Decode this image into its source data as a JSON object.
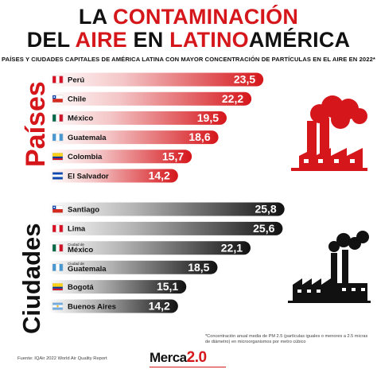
{
  "header": {
    "title_line1_black": "LA ",
    "title_line1_red": "CONTAMINACIÓN",
    "title_line2_black1": "DEL ",
    "title_line2_red1": "AIRE",
    "title_line2_black2": " EN ",
    "title_line2_red2": "LATINO",
    "title_line2_black3": "AMÉRICA",
    "subtitle": "PAÍSES Y CIUDADES CAPITALES DE AMÉRICA LATINA CON MAYOR CONCENTRACIÓN DE PARTÍCULAS EN EL AIRE EN 2022*"
  },
  "sections": {
    "countries_label": "Países",
    "cities_label": "Ciudades"
  },
  "colors": {
    "red": "#d5161b",
    "dark": "#111111",
    "country_bar_start": "#ffffff",
    "country_bar_end": "#d5161b",
    "city_bar_start": "#ffffff",
    "city_bar_end": "#111111"
  },
  "icons": {
    "countries": "factory-icon",
    "cities": "city-factory-icon"
  },
  "chart_data": [
    {
      "type": "bar",
      "orientation": "horizontal",
      "categories": [
        "Perú",
        "Chile",
        "México",
        "Guatemala",
        "Colombia",
        "El Salvador"
      ],
      "flags": [
        "peru-flag",
        "chile-flag",
        "mexico-flag",
        "guatemala-flag",
        "colombia-flag",
        "el-salvador-flag"
      ],
      "values": [
        23.5,
        22.2,
        19.5,
        18.6,
        15.7,
        14.2
      ],
      "value_labels": [
        "23,5",
        "22,2",
        "19,5",
        "18,6",
        "15,7",
        "14,2"
      ]
    },
    {
      "type": "bar",
      "orientation": "horizontal",
      "categories": [
        "Santiago",
        "Lima",
        "México",
        "Guatemala",
        "Bogotá",
        "Buenos Aires"
      ],
      "category_prefixes": [
        "",
        "",
        "Ciudad de",
        "Ciudad de",
        "",
        ""
      ],
      "flags": [
        "chile-flag",
        "peru-flag",
        "mexico-flag",
        "guatemala-flag",
        "colombia-flag",
        "argentina-flag"
      ],
      "values": [
        25.8,
        25.6,
        22.1,
        18.5,
        15.1,
        14.2
      ],
      "value_labels": [
        "25,8",
        "25,6",
        "22,1",
        "18,5",
        "15,1",
        "14,2"
      ]
    }
  ],
  "footer": {
    "footnote": "*Concentración anual media de PM 2.5 (partículas iguales o menores a 2.5 micras de diámetro) en microorganismos por metro cúbico",
    "source": "Fuente: IQAir 2022 World Air Quality Report",
    "logo_text": "Merca",
    "logo_num": "2.0"
  }
}
